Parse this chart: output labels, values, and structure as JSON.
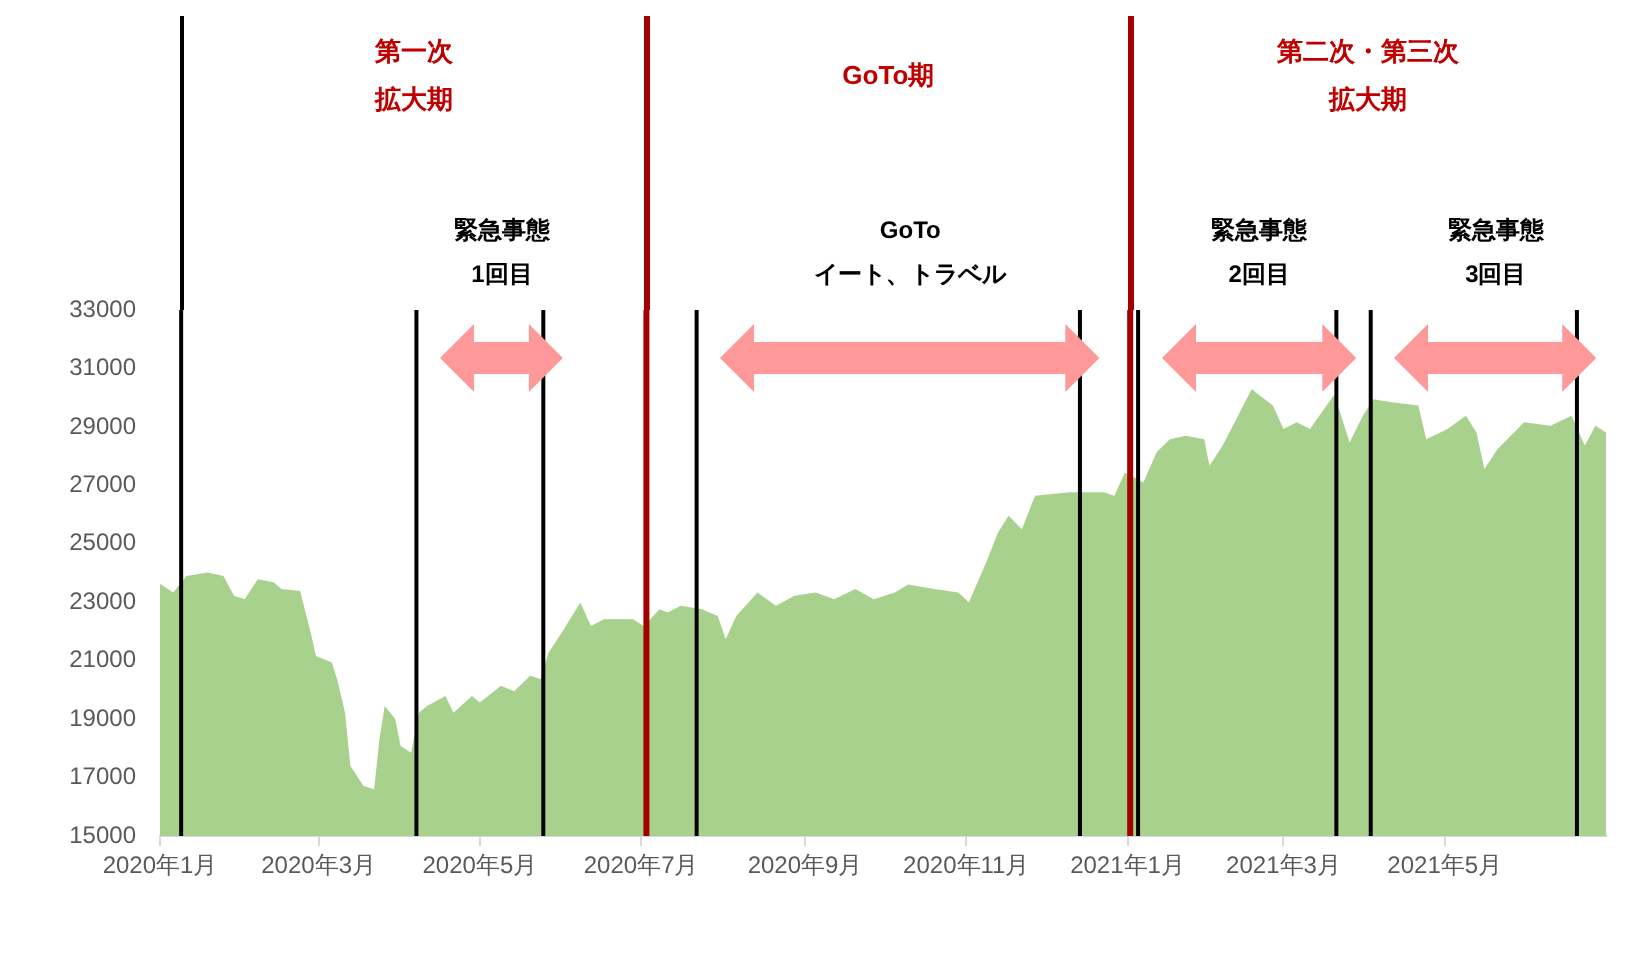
{
  "chart_data": {
    "type": "area",
    "color": "#a9d18e",
    "x": [
      "2020-01-01",
      "2020-01-06",
      "2020-01-11",
      "2020-01-19",
      "2020-01-25",
      "2020-01-29",
      "2020-02-02",
      "2020-02-07",
      "2020-02-13",
      "2020-02-16",
      "2020-02-23",
      "2020-02-27",
      "2020-02-29",
      "2020-03-06",
      "2020-03-08",
      "2020-03-11",
      "2020-03-13",
      "2020-03-18",
      "2020-03-22",
      "2020-03-24",
      "2020-03-26",
      "2020-03-30",
      "2020-04-01",
      "2020-04-05",
      "2020-04-08",
      "2020-04-11",
      "2020-04-18",
      "2020-04-21",
      "2020-04-28",
      "2020-05-01",
      "2020-05-09",
      "2020-05-14",
      "2020-05-20",
      "2020-05-24",
      "2020-05-27",
      "2020-06-01",
      "2020-06-08",
      "2020-06-12",
      "2020-06-17",
      "2020-06-28",
      "2020-07-02",
      "2020-07-08",
      "2020-07-11",
      "2020-07-16",
      "2020-07-24",
      "2020-07-30",
      "2020-08-02",
      "2020-08-06",
      "2020-08-14",
      "2020-08-21",
      "2020-08-28",
      "2020-09-05",
      "2020-09-12",
      "2020-09-20",
      "2020-09-27",
      "2020-10-05",
      "2020-10-10",
      "2020-10-20",
      "2020-10-29",
      "2020-11-02",
      "2020-11-08",
      "2020-11-13",
      "2020-11-17",
      "2020-11-22",
      "2020-11-27",
      "2020-12-10",
      "2020-12-23",
      "2020-12-27",
      "2020-12-31",
      "2021-01-07",
      "2021-01-12",
      "2021-01-17",
      "2021-01-23",
      "2021-01-30",
      "2021-02-01",
      "2021-02-06",
      "2021-02-17",
      "2021-02-20",
      "2021-02-25",
      "2021-03-01",
      "2021-03-06",
      "2021-03-11",
      "2021-03-20",
      "2021-03-22",
      "2021-03-26",
      "2021-03-31",
      "2021-04-04",
      "2021-04-11",
      "2021-04-21",
      "2021-04-24",
      "2021-05-02",
      "2021-05-09",
      "2021-05-13",
      "2021-05-16",
      "2021-05-21",
      "2021-05-31",
      "2021-06-10",
      "2021-06-18",
      "2021-06-23",
      "2021-06-27",
      "2021-07-01"
    ],
    "values": [
      23630,
      23330,
      23900,
      24020,
      23900,
      23220,
      23100,
      23790,
      23680,
      23450,
      23380,
      21960,
      21160,
      20940,
      20370,
      19220,
      17400,
      16710,
      16600,
      18310,
      19450,
      19000,
      18080,
      17850,
      19220,
      19450,
      19790,
      19220,
      19790,
      19570,
      20140,
      19950,
      20480,
      20370,
      21280,
      21960,
      22990,
      22190,
      22420,
      22420,
      22190,
      22760,
      22650,
      22880,
      22760,
      22530,
      21730,
      22530,
      23330,
      22880,
      23220,
      23330,
      23100,
      23450,
      23100,
      23330,
      23610,
      23450,
      23330,
      23000,
      24250,
      25390,
      25960,
      25500,
      26640,
      26760,
      26760,
      26640,
      27440,
      27100,
      28130,
      28580,
      28700,
      28580,
      27670,
      28360,
      30300,
      30070,
      29730,
      28930,
      29160,
      28930,
      30070,
      29610,
      28470,
      29380,
      29950,
      29840,
      29730,
      28580,
      28930,
      29380,
      28810,
      27560,
      28240,
      29160,
      29040,
      29380,
      28360,
      29040,
      28810
    ],
    "xlim": [
      "2020-01-01",
      "2021-07-01"
    ],
    "xticks": [
      {
        "value": "2020-01-01",
        "label": "2020年1月"
      },
      {
        "value": "2020-03-01",
        "label": "2020年3月"
      },
      {
        "value": "2020-05-01",
        "label": "2020年5月"
      },
      {
        "value": "2020-07-01",
        "label": "2020年7月"
      },
      {
        "value": "2020-09-01",
        "label": "2020年9月"
      },
      {
        "value": "2020-11-01",
        "label": "2020年11月"
      },
      {
        "value": "2021-01-01",
        "label": "2021年1月"
      },
      {
        "value": "2021-03-01",
        "label": "2021年3月"
      },
      {
        "value": "2021-05-01",
        "label": "2021年5月"
      }
    ],
    "ylim": [
      15000,
      33000
    ],
    "yticks": [
      15000,
      17000,
      19000,
      21000,
      23000,
      25000,
      27000,
      29000,
      31000,
      33000
    ],
    "grid": false,
    "legend": false,
    "ref_lines": [
      {
        "axis": "x",
        "value": "2020-01-09",
        "color": "#000000"
      },
      {
        "axis": "x",
        "value": "2020-04-07",
        "color": "#000000"
      },
      {
        "axis": "x",
        "value": "2020-05-25",
        "color": "#000000"
      },
      {
        "axis": "x",
        "value": "2020-07-03",
        "color": "#a50000"
      },
      {
        "axis": "x",
        "value": "2020-07-22",
        "color": "#000000"
      },
      {
        "axis": "x",
        "value": "2020-12-14",
        "color": "#000000"
      },
      {
        "axis": "x",
        "value": "2021-01-02",
        "color": "#a50000"
      },
      {
        "axis": "x",
        "value": "2021-01-05",
        "color": "#000000"
      },
      {
        "axis": "x",
        "value": "2021-03-21",
        "color": "#000000"
      },
      {
        "axis": "x",
        "value": "2021-04-03",
        "color": "#000000"
      },
      {
        "axis": "x",
        "value": "2021-06-20",
        "color": "#000000"
      }
    ],
    "annotations": [
      "第一次拡大期",
      "GoTo期",
      "第二次・第三次拡大期",
      "緊急事態1回目",
      "GoToイート、トラベル",
      "緊急事態2回目",
      "緊急事態3回目"
    ]
  }
}
